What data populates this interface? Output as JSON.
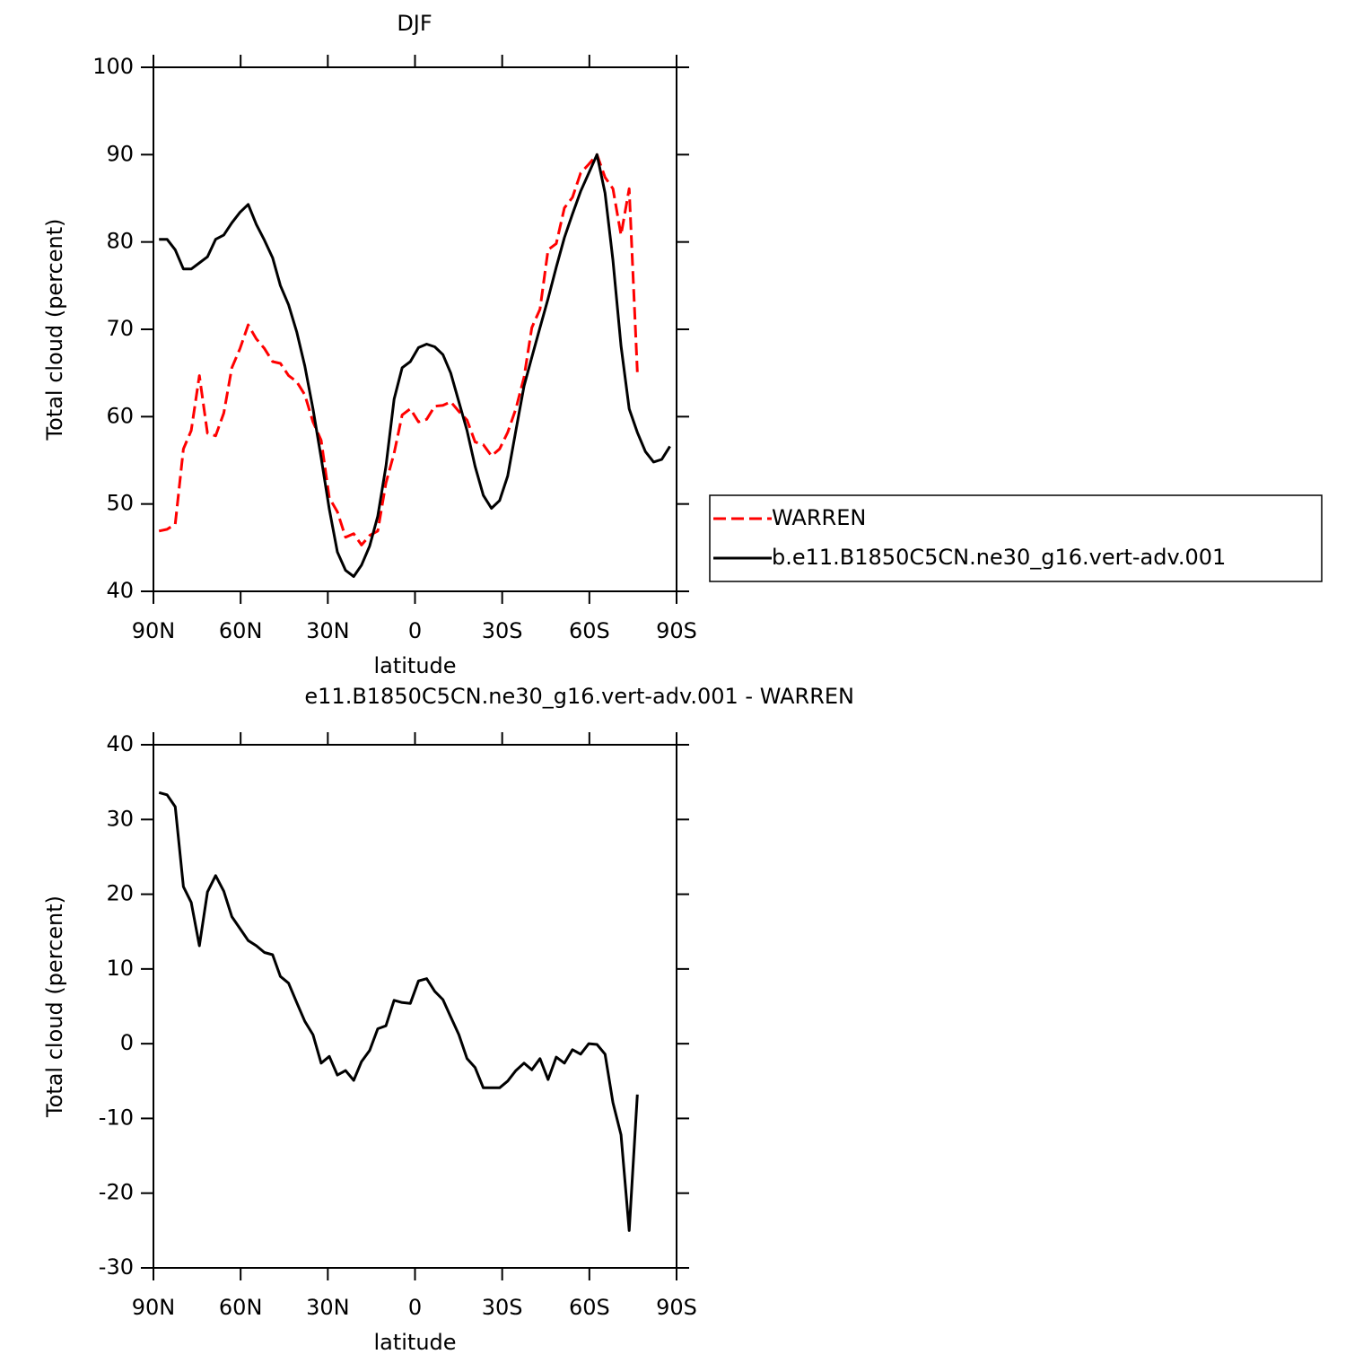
{
  "chart_data": [
    {
      "type": "line",
      "title": "DJF",
      "xlabel": "latitude",
      "ylabel": "Total cloud (percent)",
      "x": [
        88.1,
        85.3,
        82.5,
        79.7,
        77.0,
        74.2,
        71.4,
        68.6,
        65.8,
        63.0,
        60.2,
        57.4,
        54.6,
        51.8,
        49.0,
        46.3,
        43.5,
        40.7,
        37.9,
        35.1,
        32.3,
        29.5,
        26.7,
        23.9,
        21.1,
        18.4,
        15.6,
        12.8,
        10.0,
        7.2,
        4.4,
        1.6,
        -1.2,
        -4.0,
        -6.8,
        -9.6,
        -12.3,
        -15.1,
        -17.9,
        -20.7,
        -23.5,
        -26.3,
        -29.1,
        -31.9,
        -34.7,
        -37.5,
        -40.2,
        -43.0,
        -45.8,
        -48.6,
        -51.4,
        -54.2,
        -57.0,
        -59.8,
        -62.6,
        -65.4,
        -68.1,
        -70.9,
        -73.7,
        -76.5,
        -79.3,
        -82.1,
        -84.9,
        -87.7
      ],
      "xlim": [
        90,
        -90
      ],
      "xticks": [
        {
          "value": 90,
          "label": "90N"
        },
        {
          "value": 60,
          "label": "60N"
        },
        {
          "value": 30,
          "label": "30N"
        },
        0,
        {
          "value": -30,
          "label": "30S"
        },
        {
          "value": -60,
          "label": "60S"
        },
        {
          "value": -90,
          "label": "90S"
        }
      ],
      "ylim": [
        40,
        100
      ],
      "yticks": [
        40,
        50,
        60,
        70,
        80,
        90,
        100
      ],
      "legend": "right",
      "series": [
        {
          "name": "WARREN",
          "color": "#ff0000",
          "dashed": true,
          "values": [
            46.9,
            47.1,
            47.7,
            56.3,
            58.4,
            64.7,
            58.1,
            57.8,
            60.4,
            65.6,
            67.8,
            70.5,
            68.9,
            67.8,
            66.3,
            66.1,
            64.7,
            64.0,
            62.5,
            59.4,
            57.3,
            50.7,
            49.1,
            46.2,
            46.6,
            45.3,
            46.4,
            46.9,
            52.4,
            55.8,
            60.2,
            60.9,
            59.4,
            59.7,
            61.2,
            61.3,
            61.7,
            60.6,
            59.6,
            57.1,
            56.8,
            55.5,
            56.3,
            58.2,
            60.9,
            64.5,
            70.2,
            72.3,
            79.1,
            79.8,
            83.9,
            85.1,
            87.9,
            88.9,
            90.0,
            87.4,
            86.1,
            80.8,
            86.1,
            65.1,
            null,
            null,
            null,
            null
          ]
        },
        {
          "name": "b.e11.B1850C5CN.ne30_g16.vert-adv.001",
          "color": "#000000",
          "dashed": false,
          "values": [
            80.3,
            80.3,
            79.1,
            76.9,
            76.9,
            77.6,
            78.3,
            80.3,
            80.8,
            82.2,
            83.4,
            84.3,
            82.0,
            80.2,
            78.2,
            75.0,
            72.8,
            69.7,
            65.8,
            60.9,
            55.3,
            49.4,
            44.5,
            42.4,
            41.7,
            43.0,
            45.2,
            48.6,
            54.3,
            62.0,
            65.6,
            66.3,
            67.9,
            68.3,
            68.0,
            67.1,
            65.0,
            61.7,
            58.4,
            54.3,
            51.0,
            49.5,
            50.4,
            53.2,
            58.4,
            63.5,
            66.8,
            70.2,
            73.5,
            77.1,
            80.5,
            83.2,
            85.8,
            87.9,
            90.0,
            85.6,
            77.9,
            68.1,
            60.9,
            58.2,
            56.0,
            54.8,
            55.1,
            56.6
          ]
        }
      ]
    },
    {
      "type": "line",
      "title": "e11.B1850C5CN.ne30_g16.vert-adv.001 - WARREN",
      "xlabel": "latitude",
      "ylabel": "Total cloud (percent)",
      "x": [
        88.1,
        85.3,
        82.5,
        79.7,
        77.0,
        74.2,
        71.4,
        68.6,
        65.8,
        63.0,
        60.2,
        57.4,
        54.6,
        51.8,
        49.0,
        46.3,
        43.5,
        40.7,
        37.9,
        35.1,
        32.3,
        29.5,
        26.7,
        23.9,
        21.1,
        18.4,
        15.6,
        12.8,
        10.0,
        7.2,
        4.4,
        1.6,
        -1.2,
        -4.0,
        -6.8,
        -9.6,
        -12.3,
        -15.1,
        -17.9,
        -20.7,
        -23.5,
        -26.3,
        -29.1,
        -31.9,
        -34.7,
        -37.5,
        -40.2,
        -43.0,
        -45.8,
        -48.6,
        -51.4,
        -54.2,
        -57.0,
        -59.8,
        -62.6,
        -65.4,
        -68.1,
        -70.9,
        -73.7,
        -76.5
      ],
      "xlim": [
        90,
        -90
      ],
      "xticks": [
        {
          "value": 90,
          "label": "90N"
        },
        {
          "value": 60,
          "label": "60N"
        },
        {
          "value": 30,
          "label": "30N"
        },
        0,
        {
          "value": -30,
          "label": "30S"
        },
        {
          "value": -60,
          "label": "60S"
        },
        {
          "value": -90,
          "label": "90S"
        }
      ],
      "ylim": [
        -30,
        40
      ],
      "yticks": [
        -30,
        -20,
        -10,
        0,
        10,
        20,
        30,
        40
      ],
      "series": [
        {
          "color": "#000000",
          "dashed": false,
          "values": [
            33.6,
            33.3,
            31.7,
            21.0,
            18.9,
            13.1,
            20.3,
            22.5,
            20.4,
            17.0,
            15.4,
            13.8,
            13.1,
            12.2,
            11.9,
            9.0,
            8.1,
            5.5,
            3.0,
            1.2,
            -2.6,
            -1.7,
            -4.2,
            -3.6,
            -4.9,
            -2.4,
            -0.9,
            2.0,
            2.4,
            5.8,
            5.5,
            5.4,
            8.4,
            8.7,
            7.0,
            5.9,
            3.6,
            1.2,
            -2.0,
            -3.2,
            -5.9,
            -5.9,
            -5.9,
            -5.0,
            -3.6,
            -2.6,
            -3.5,
            -2.0,
            -4.8,
            -1.8,
            -2.6,
            -0.8,
            -1.4,
            0.0,
            -0.1,
            -1.4,
            -7.9,
            -12.2,
            -25.0,
            -6.8
          ]
        }
      ]
    }
  ]
}
